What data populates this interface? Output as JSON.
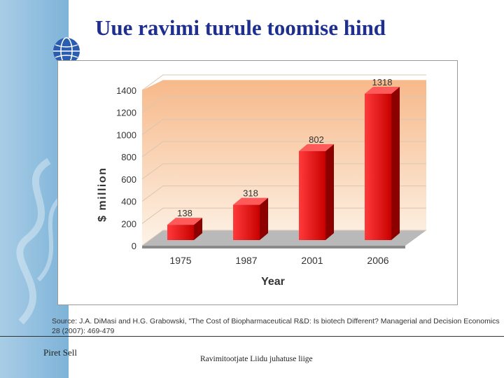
{
  "slide": {
    "title": "Uue ravimi turule toomise hind",
    "source": "Source: J.A. DiMasi and H.G. Grabowski, \"The Cost of Biopharmaceutical R&D: Is biotech Different? Managerial and Decision Economics 28 (2007): 469-479",
    "footer_left": "Piret Sell",
    "footer_center": "Ravimitootjate Liidu juhatuse liige"
  },
  "chart_data": {
    "type": "bar",
    "title": "",
    "xlabel": "Year",
    "ylabel": "$ million",
    "categories": [
      "1975",
      "1987",
      "2001",
      "2006"
    ],
    "values": [
      138,
      318,
      802,
      1318
    ],
    "data_labels": [
      "138",
      "318",
      "802",
      "1318"
    ],
    "ylim": [
      0,
      1400
    ],
    "yticks": [
      0,
      200,
      400,
      600,
      800,
      1000,
      1200,
      1400
    ],
    "grid": true,
    "legend": "none",
    "colors": {
      "bar": "#e21a1a",
      "bar_dark": "#8c0000",
      "background_top": "#f7b98a",
      "background_bottom": "#fdf3e8"
    }
  }
}
